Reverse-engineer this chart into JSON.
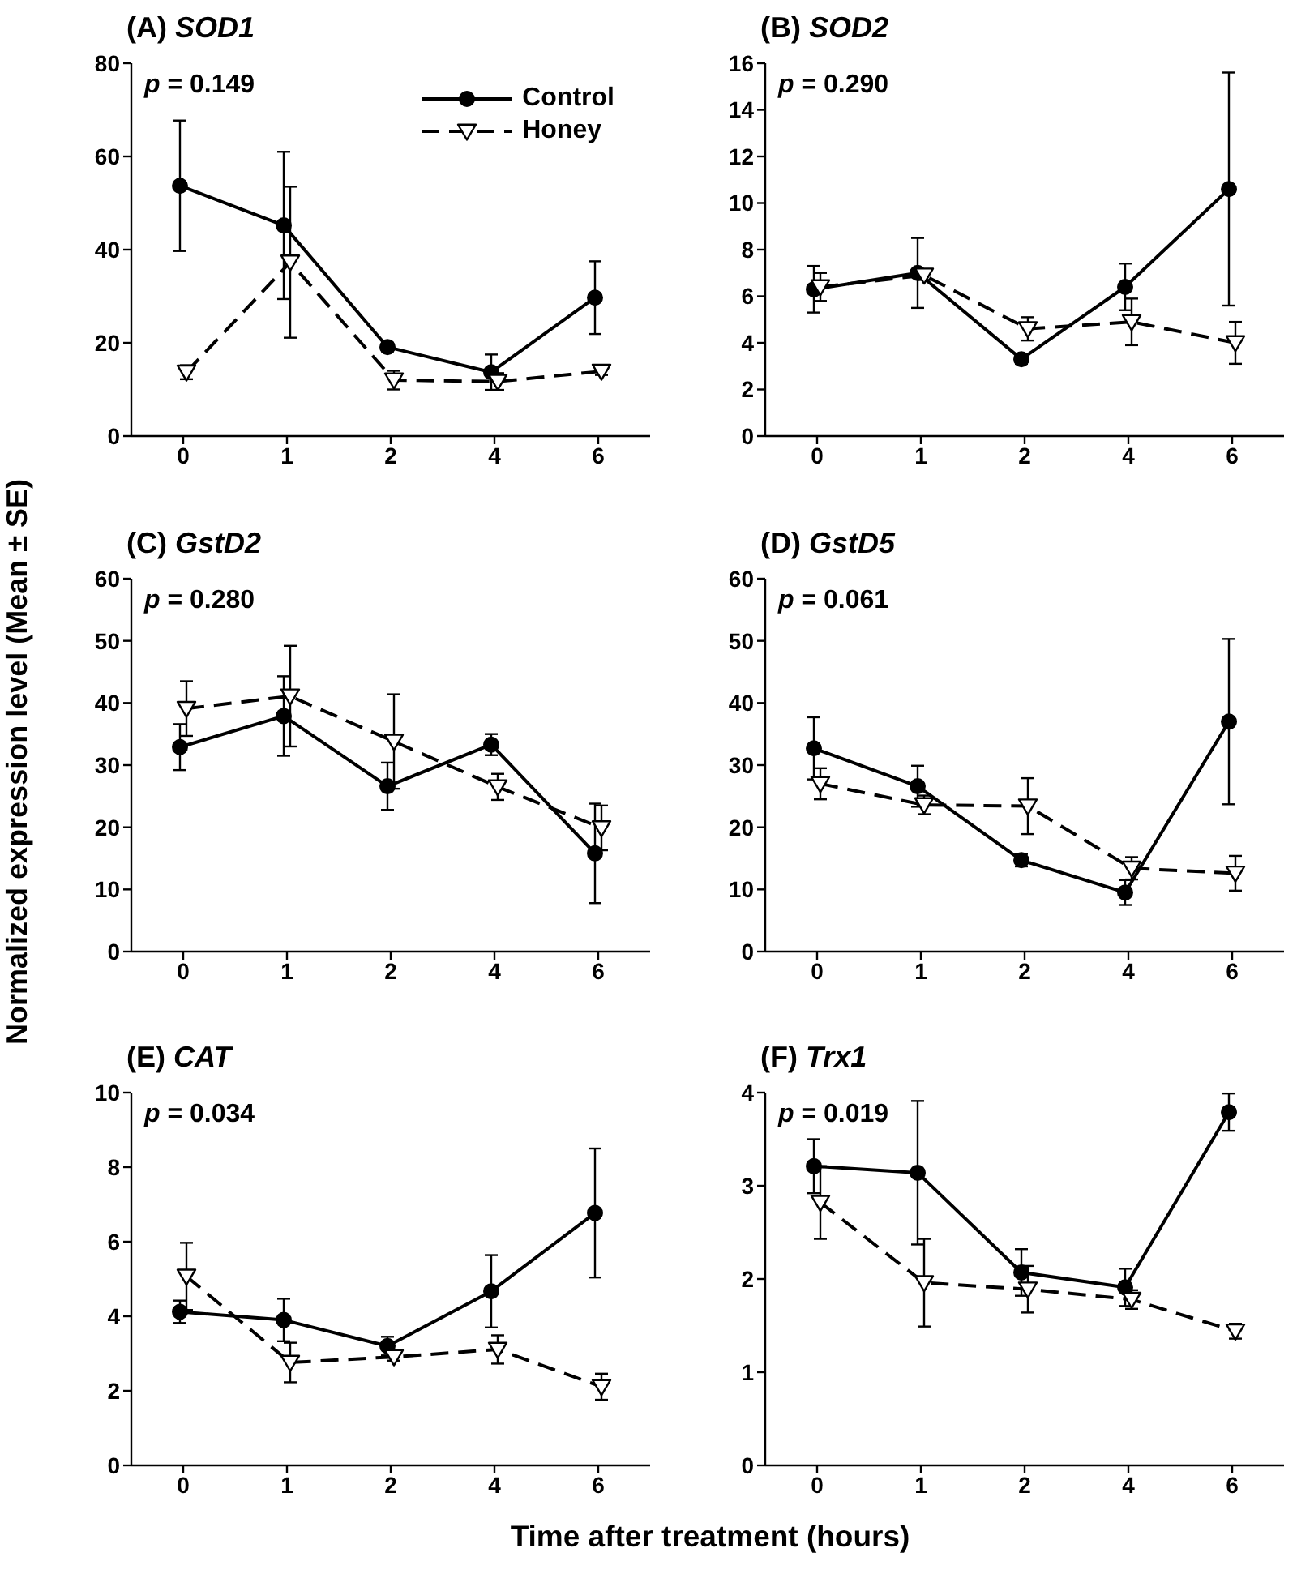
{
  "chart_data": [
    {
      "type": "line",
      "title": "(A) SOD1",
      "categories": [
        "0",
        "1",
        "2",
        "4",
        "6"
      ],
      "ylim": [
        0,
        80
      ],
      "yticks": [
        0,
        20,
        40,
        60,
        80
      ],
      "annotations": [
        "p = 0.149"
      ],
      "legend": "top right",
      "series": [
        {
          "name": "Control",
          "color": "#000000",
          "marker": "circle",
          "line_style": "solid",
          "values": [
            53.7,
            45.2,
            19.1,
            13.7,
            29.7
          ],
          "errors": [
            14.0,
            15.8,
            0.9,
            3.8,
            7.8
          ]
        },
        {
          "name": "Honey",
          "color": "#000000",
          "marker": "triangle",
          "line_style": "dashed",
          "values": [
            13.7,
            37.3,
            12.0,
            11.7,
            13.9
          ],
          "errors": [
            1.5,
            16.2,
            2.0,
            1.8,
            0.8
          ]
        }
      ]
    },
    {
      "type": "line",
      "title": "(B) SOD2",
      "categories": [
        "0",
        "1",
        "2",
        "4",
        "6"
      ],
      "ylim": [
        0,
        16
      ],
      "yticks": [
        0,
        2,
        4,
        6,
        8,
        10,
        12,
        14,
        16
      ],
      "annotations": [
        "p = 0.290"
      ],
      "series": [
        {
          "color": "#000000",
          "marker": "circle",
          "line_style": "solid",
          "values": [
            6.3,
            7.0,
            3.3,
            6.4,
            10.6
          ],
          "errors": [
            1.0,
            1.5,
            0.2,
            1.0,
            5.0
          ]
        },
        {
          "color": "#000000",
          "marker": "triangle",
          "line_style": "dashed",
          "values": [
            6.4,
            6.9,
            4.6,
            4.9,
            4.0
          ],
          "errors": [
            0.6,
            0.2,
            0.5,
            1.0,
            0.9
          ]
        }
      ]
    },
    {
      "type": "line",
      "title": "(C) GstD2",
      "categories": [
        "0",
        "1",
        "2",
        "4",
        "6"
      ],
      "ylim": [
        0,
        60
      ],
      "yticks": [
        0,
        10,
        20,
        30,
        40,
        50,
        60
      ],
      "annotations": [
        "p = 0.280"
      ],
      "ylabel": "Normalized expression level (Mean ± SE)",
      "series": [
        {
          "color": "#000000",
          "marker": "circle",
          "line_style": "solid",
          "values": [
            32.9,
            37.9,
            26.6,
            33.3,
            15.8
          ],
          "errors": [
            3.7,
            6.4,
            3.8,
            1.7,
            8.0
          ]
        },
        {
          "color": "#000000",
          "marker": "triangle",
          "line_style": "dashed",
          "values": [
            39.1,
            41.1,
            33.8,
            26.5,
            19.9
          ],
          "errors": [
            4.4,
            8.1,
            7.6,
            2.1,
            3.6
          ]
        }
      ]
    },
    {
      "type": "line",
      "title": "(D) GstD5",
      "categories": [
        "0",
        "1",
        "2",
        "4",
        "6"
      ],
      "ylim": [
        0,
        60
      ],
      "yticks": [
        0,
        10,
        20,
        30,
        40,
        50,
        60
      ],
      "annotations": [
        "p = 0.061"
      ],
      "series": [
        {
          "color": "#000000",
          "marker": "circle",
          "line_style": "solid",
          "values": [
            32.7,
            26.6,
            14.7,
            9.5,
            37.0
          ],
          "errors": [
            5.0,
            3.3,
            1.0,
            2.0,
            13.3
          ]
        },
        {
          "color": "#000000",
          "marker": "triangle",
          "line_style": "dashed",
          "values": [
            27.0,
            23.6,
            23.4,
            13.4,
            12.6
          ],
          "errors": [
            2.5,
            1.5,
            4.5,
            1.8,
            2.8
          ]
        }
      ]
    },
    {
      "type": "line",
      "title": "(E) CAT",
      "categories": [
        "0",
        "1",
        "2",
        "4",
        "6"
      ],
      "ylim": [
        0,
        10
      ],
      "yticks": [
        0,
        2,
        4,
        6,
        8,
        10
      ],
      "annotations": [
        "p = 0.034"
      ],
      "xlabel": "Time after treatment (hours)",
      "series": [
        {
          "color": "#000000",
          "marker": "circle",
          "line_style": "solid",
          "values": [
            4.12,
            3.9,
            3.2,
            4.67,
            6.77
          ],
          "errors": [
            0.3,
            0.57,
            0.25,
            0.97,
            1.73
          ]
        },
        {
          "color": "#000000",
          "marker": "triangle",
          "line_style": "dashed",
          "values": [
            5.07,
            2.76,
            2.91,
            3.11,
            2.11
          ],
          "errors": [
            0.9,
            0.53,
            0.1,
            0.38,
            0.35
          ]
        }
      ]
    },
    {
      "type": "line",
      "title": "(F) Trx1",
      "categories": [
        "0",
        "1",
        "2",
        "4",
        "6"
      ],
      "ylim": [
        0,
        4
      ],
      "yticks": [
        0,
        1,
        2,
        3,
        4
      ],
      "annotations": [
        "p = 0.019"
      ],
      "series": [
        {
          "color": "#000000",
          "marker": "circle",
          "line_style": "solid",
          "values": [
            3.21,
            3.14,
            2.07,
            1.91,
            3.79
          ],
          "errors": [
            0.29,
            0.77,
            0.25,
            0.2,
            0.2
          ]
        },
        {
          "color": "#000000",
          "marker": "triangle",
          "line_style": "dashed",
          "values": [
            2.82,
            1.96,
            1.89,
            1.78,
            1.44
          ],
          "errors": [
            0.39,
            0.47,
            0.25,
            0.1,
            0.08
          ]
        }
      ]
    }
  ]
}
